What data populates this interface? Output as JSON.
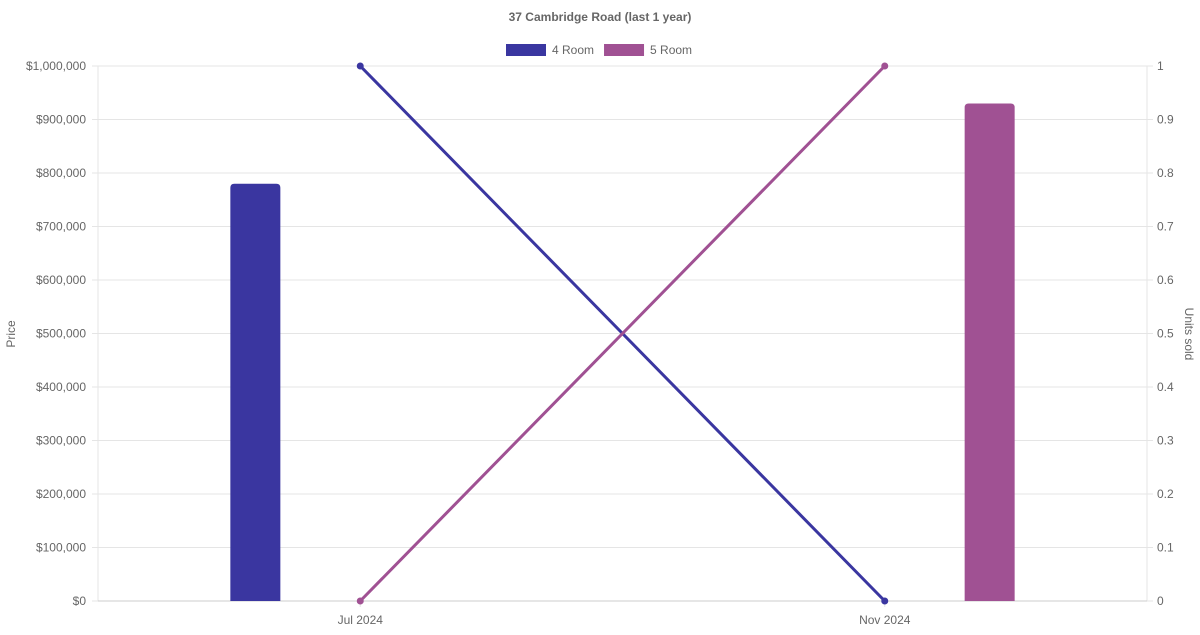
{
  "chart_data": {
    "type": "bar+line",
    "title": "37 Cambridge Road (last 1 year)",
    "categories": [
      "Jul 2024",
      "Nov 2024"
    ],
    "y_left": {
      "label": "Price",
      "range": [
        0,
        1000000
      ],
      "ticks": [
        "$0",
        "$100,000",
        "$200,000",
        "$300,000",
        "$400,000",
        "$500,000",
        "$600,000",
        "$700,000",
        "$800,000",
        "$900,000",
        "$1,000,000"
      ]
    },
    "y_right": {
      "label": "Units sold",
      "range": [
        0,
        1
      ],
      "ticks": [
        "0",
        "0.1",
        "0.2",
        "0.3",
        "0.4",
        "0.5",
        "0.6",
        "0.7",
        "0.8",
        "0.9",
        "1"
      ]
    },
    "grid": true,
    "legend_position": "top",
    "series": [
      {
        "name": "4 Room",
        "color": "#3a36a0",
        "price": [
          780000,
          null
        ],
        "units_sold": [
          1,
          0
        ]
      },
      {
        "name": "5 Room",
        "color": "#a05193",
        "price": [
          null,
          930000
        ],
        "units_sold": [
          0,
          1
        ]
      }
    ]
  }
}
